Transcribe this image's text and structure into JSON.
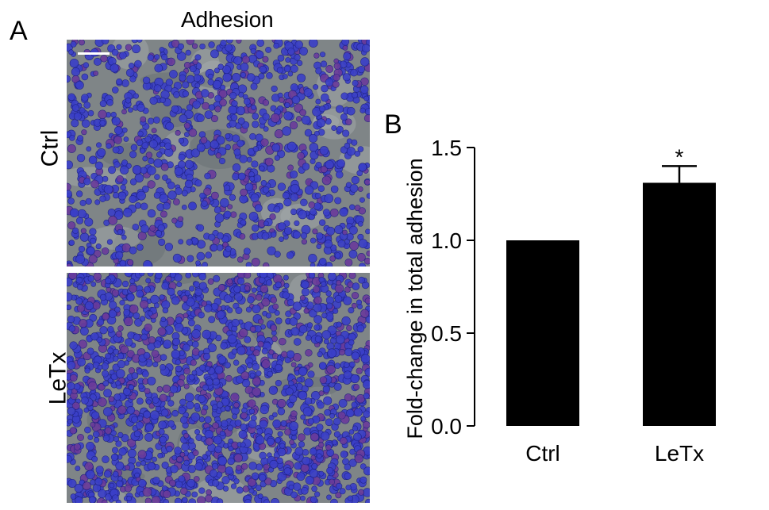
{
  "panel_a": {
    "letter": "A",
    "title": "Adhesion",
    "rows": [
      {
        "label": "Ctrl",
        "image": "micrograph-ctrl"
      },
      {
        "label": "LeTx",
        "image": "micrograph-letx"
      }
    ]
  },
  "panel_b": {
    "letter": "B"
  },
  "colors": {
    "bar": "#000000",
    "micrograph_bg": "#7f8587",
    "cell_blue": "#3a3fc8",
    "cell_purple": "#6a3a9a",
    "scale_bar": "#ffffff"
  },
  "chart_data": {
    "type": "bar",
    "categories": [
      "Ctrl",
      "LeTx"
    ],
    "values": [
      1.0,
      1.31
    ],
    "error": [
      0,
      0.09
    ],
    "annotations": [
      "",
      "*"
    ],
    "ylabel": "Fold-change in total adhesion",
    "xlabel": "",
    "ylim": [
      0,
      1.5
    ],
    "yticks": [
      "0.0",
      "0.5",
      "1.0",
      "1.5"
    ],
    "grid": false
  }
}
